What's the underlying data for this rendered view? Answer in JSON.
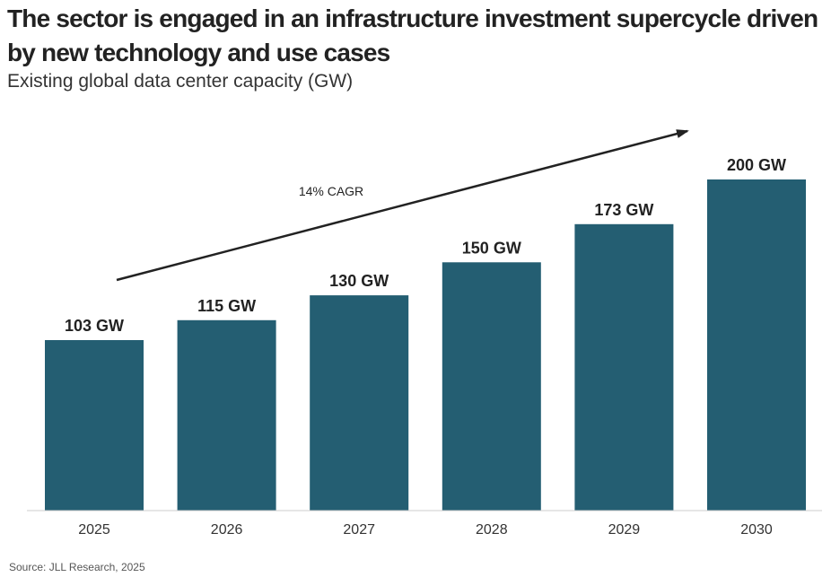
{
  "header": {
    "title": "The sector is engaged in an infrastructure investment supercycle driven by new technology and use cases",
    "subtitle": "Existing global data center capacity (GW)"
  },
  "footer": {
    "source": "Source: JLL Research, 2025"
  },
  "colors": {
    "bar": "#245e72",
    "axis": "#cccccc",
    "arrow": "#222222"
  },
  "chart_data": {
    "type": "bar",
    "title": "Existing global data center capacity (GW)",
    "categories": [
      "2025",
      "2026",
      "2027",
      "2028",
      "2029",
      "2030"
    ],
    "values": [
      103,
      115,
      130,
      150,
      173,
      200
    ],
    "data_labels": [
      "103 GW",
      "115 GW",
      "130 GW",
      "150 GW",
      "173 GW",
      "200 GW"
    ],
    "unit": "GW",
    "xlabel": "",
    "ylabel": "",
    "ylim": [
      0,
      200
    ],
    "grid": false,
    "legend": "none",
    "annotations": [
      {
        "text": "14% CAGR",
        "type": "trend-arrow",
        "from": "2025",
        "to": "2030"
      }
    ]
  }
}
